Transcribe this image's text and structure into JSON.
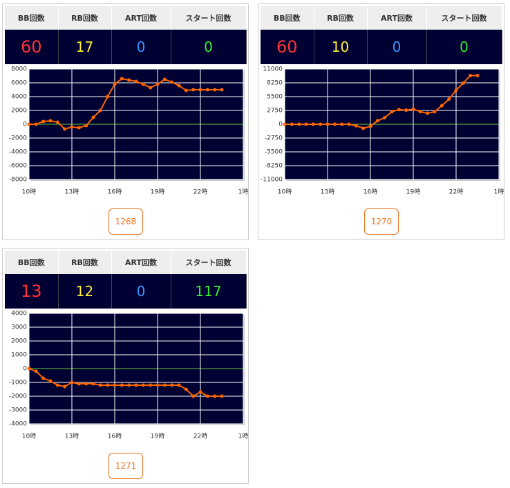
{
  "panels": [
    {
      "headers": [
        "BB回数",
        "RB回数",
        "ART回数",
        "スタート回数"
      ],
      "stats": [
        60,
        17,
        0,
        0
      ],
      "button": "1268",
      "chart": {
        "type": "line",
        "ylim": [
          -8000,
          8000
        ],
        "yticks": [
          8000,
          6000,
          4000,
          2000,
          0,
          -2000,
          -4000,
          -6000,
          -8000
        ],
        "xlim": [
          10,
          25
        ],
        "xticks": [
          {
            "value": 10,
            "label": "10時"
          },
          {
            "value": 13,
            "label": "13時"
          },
          {
            "value": 16,
            "label": "16時"
          },
          {
            "value": 19,
            "label": "19時"
          },
          {
            "value": 22,
            "label": "22時"
          },
          {
            "value": 25,
            "label": "1時"
          }
        ],
        "x": [
          10,
          10.5,
          11,
          11.5,
          12,
          12.5,
          13,
          13.5,
          14,
          14.5,
          15,
          15.5,
          16,
          16.5,
          17,
          17.5,
          18,
          18.5,
          19,
          19.5,
          20,
          20.5,
          21,
          21.5,
          22,
          22.5,
          23,
          23.5
        ],
        "values": [
          0,
          0,
          400,
          500,
          300,
          -700,
          -400,
          -500,
          -200,
          1000,
          2000,
          4000,
          5800,
          6600,
          6400,
          6200,
          5800,
          5300,
          5800,
          6500,
          6100,
          5600,
          4900,
          5000,
          5000,
          5000,
          5000,
          5000
        ],
        "color": "#ff6600",
        "zero_line_color": "#66cc33",
        "grid": true
      }
    },
    {
      "headers": [
        "BB回数",
        "RB回数",
        "ART回数",
        "スタート回数"
      ],
      "stats": [
        60,
        10,
        0,
        0
      ],
      "button": "1270",
      "chart": {
        "type": "line",
        "ylim": [
          -11000,
          11000
        ],
        "yticks": [
          11000,
          8250,
          5500,
          2750,
          0,
          -2750,
          -5500,
          -8250,
          -11000
        ],
        "xlim": [
          10,
          25
        ],
        "xticks": [
          {
            "value": 10,
            "label": "10時"
          },
          {
            "value": 13,
            "label": "13時"
          },
          {
            "value": 16,
            "label": "16時"
          },
          {
            "value": 19,
            "label": "19時"
          },
          {
            "value": 22,
            "label": "22時"
          },
          {
            "value": 25,
            "label": "1時"
          }
        ],
        "x": [
          10,
          10.5,
          11,
          11.5,
          12,
          12.5,
          13,
          13.5,
          14,
          14.5,
          15,
          15.5,
          16,
          16.5,
          17,
          17.5,
          18,
          18.5,
          19,
          19.5,
          20,
          20.5,
          21,
          21.5,
          22,
          22.5,
          23,
          23.5
        ],
        "values": [
          0,
          0,
          0,
          0,
          0,
          0,
          0,
          0,
          0,
          0,
          -300,
          -800,
          -400,
          700,
          1300,
          2500,
          2900,
          2800,
          3000,
          2500,
          2200,
          2500,
          3700,
          5000,
          6800,
          8200,
          9700,
          9700
        ],
        "color": "#ff6600",
        "zero_line_color": "#66cc33",
        "grid": true
      }
    },
    {
      "headers": [
        "BB回数",
        "RB回数",
        "ART回数",
        "スタート回数"
      ],
      "stats": [
        13,
        12,
        0,
        117
      ],
      "button": "1271",
      "chart": {
        "type": "line",
        "ylim": [
          -4000,
          4000
        ],
        "yticks": [
          4000,
          3000,
          2000,
          1000,
          0,
          -1000,
          -2000,
          -3000,
          -4000
        ],
        "xlim": [
          10,
          25
        ],
        "xticks": [
          {
            "value": 10,
            "label": "10時"
          },
          {
            "value": 13,
            "label": "13時"
          },
          {
            "value": 16,
            "label": "16時"
          },
          {
            "value": 19,
            "label": "19時"
          },
          {
            "value": 22,
            "label": "22時"
          },
          {
            "value": 25,
            "label": "1時"
          }
        ],
        "x": [
          10,
          10.5,
          11,
          11.5,
          12,
          12.5,
          13,
          13.5,
          14,
          14.5,
          15,
          15.5,
          16,
          16.5,
          17,
          17.5,
          18,
          18.5,
          19,
          19.5,
          20,
          20.5,
          21,
          21.5,
          22,
          22.5,
          23,
          23.5
        ],
        "values": [
          0,
          -200,
          -700,
          -900,
          -1200,
          -1300,
          -1000,
          -1100,
          -1100,
          -1100,
          -1200,
          -1200,
          -1200,
          -1200,
          -1200,
          -1200,
          -1200,
          -1200,
          -1200,
          -1200,
          -1200,
          -1200,
          -1500,
          -2000,
          -1700,
          -2000,
          -2000,
          -2000
        ],
        "color": "#ff6600",
        "zero_line_color": "#66cc33",
        "grid": true
      }
    }
  ],
  "stat_colors": [
    "#ff3333",
    "#ffee33",
    "#3399ff",
    "#33ee33"
  ]
}
